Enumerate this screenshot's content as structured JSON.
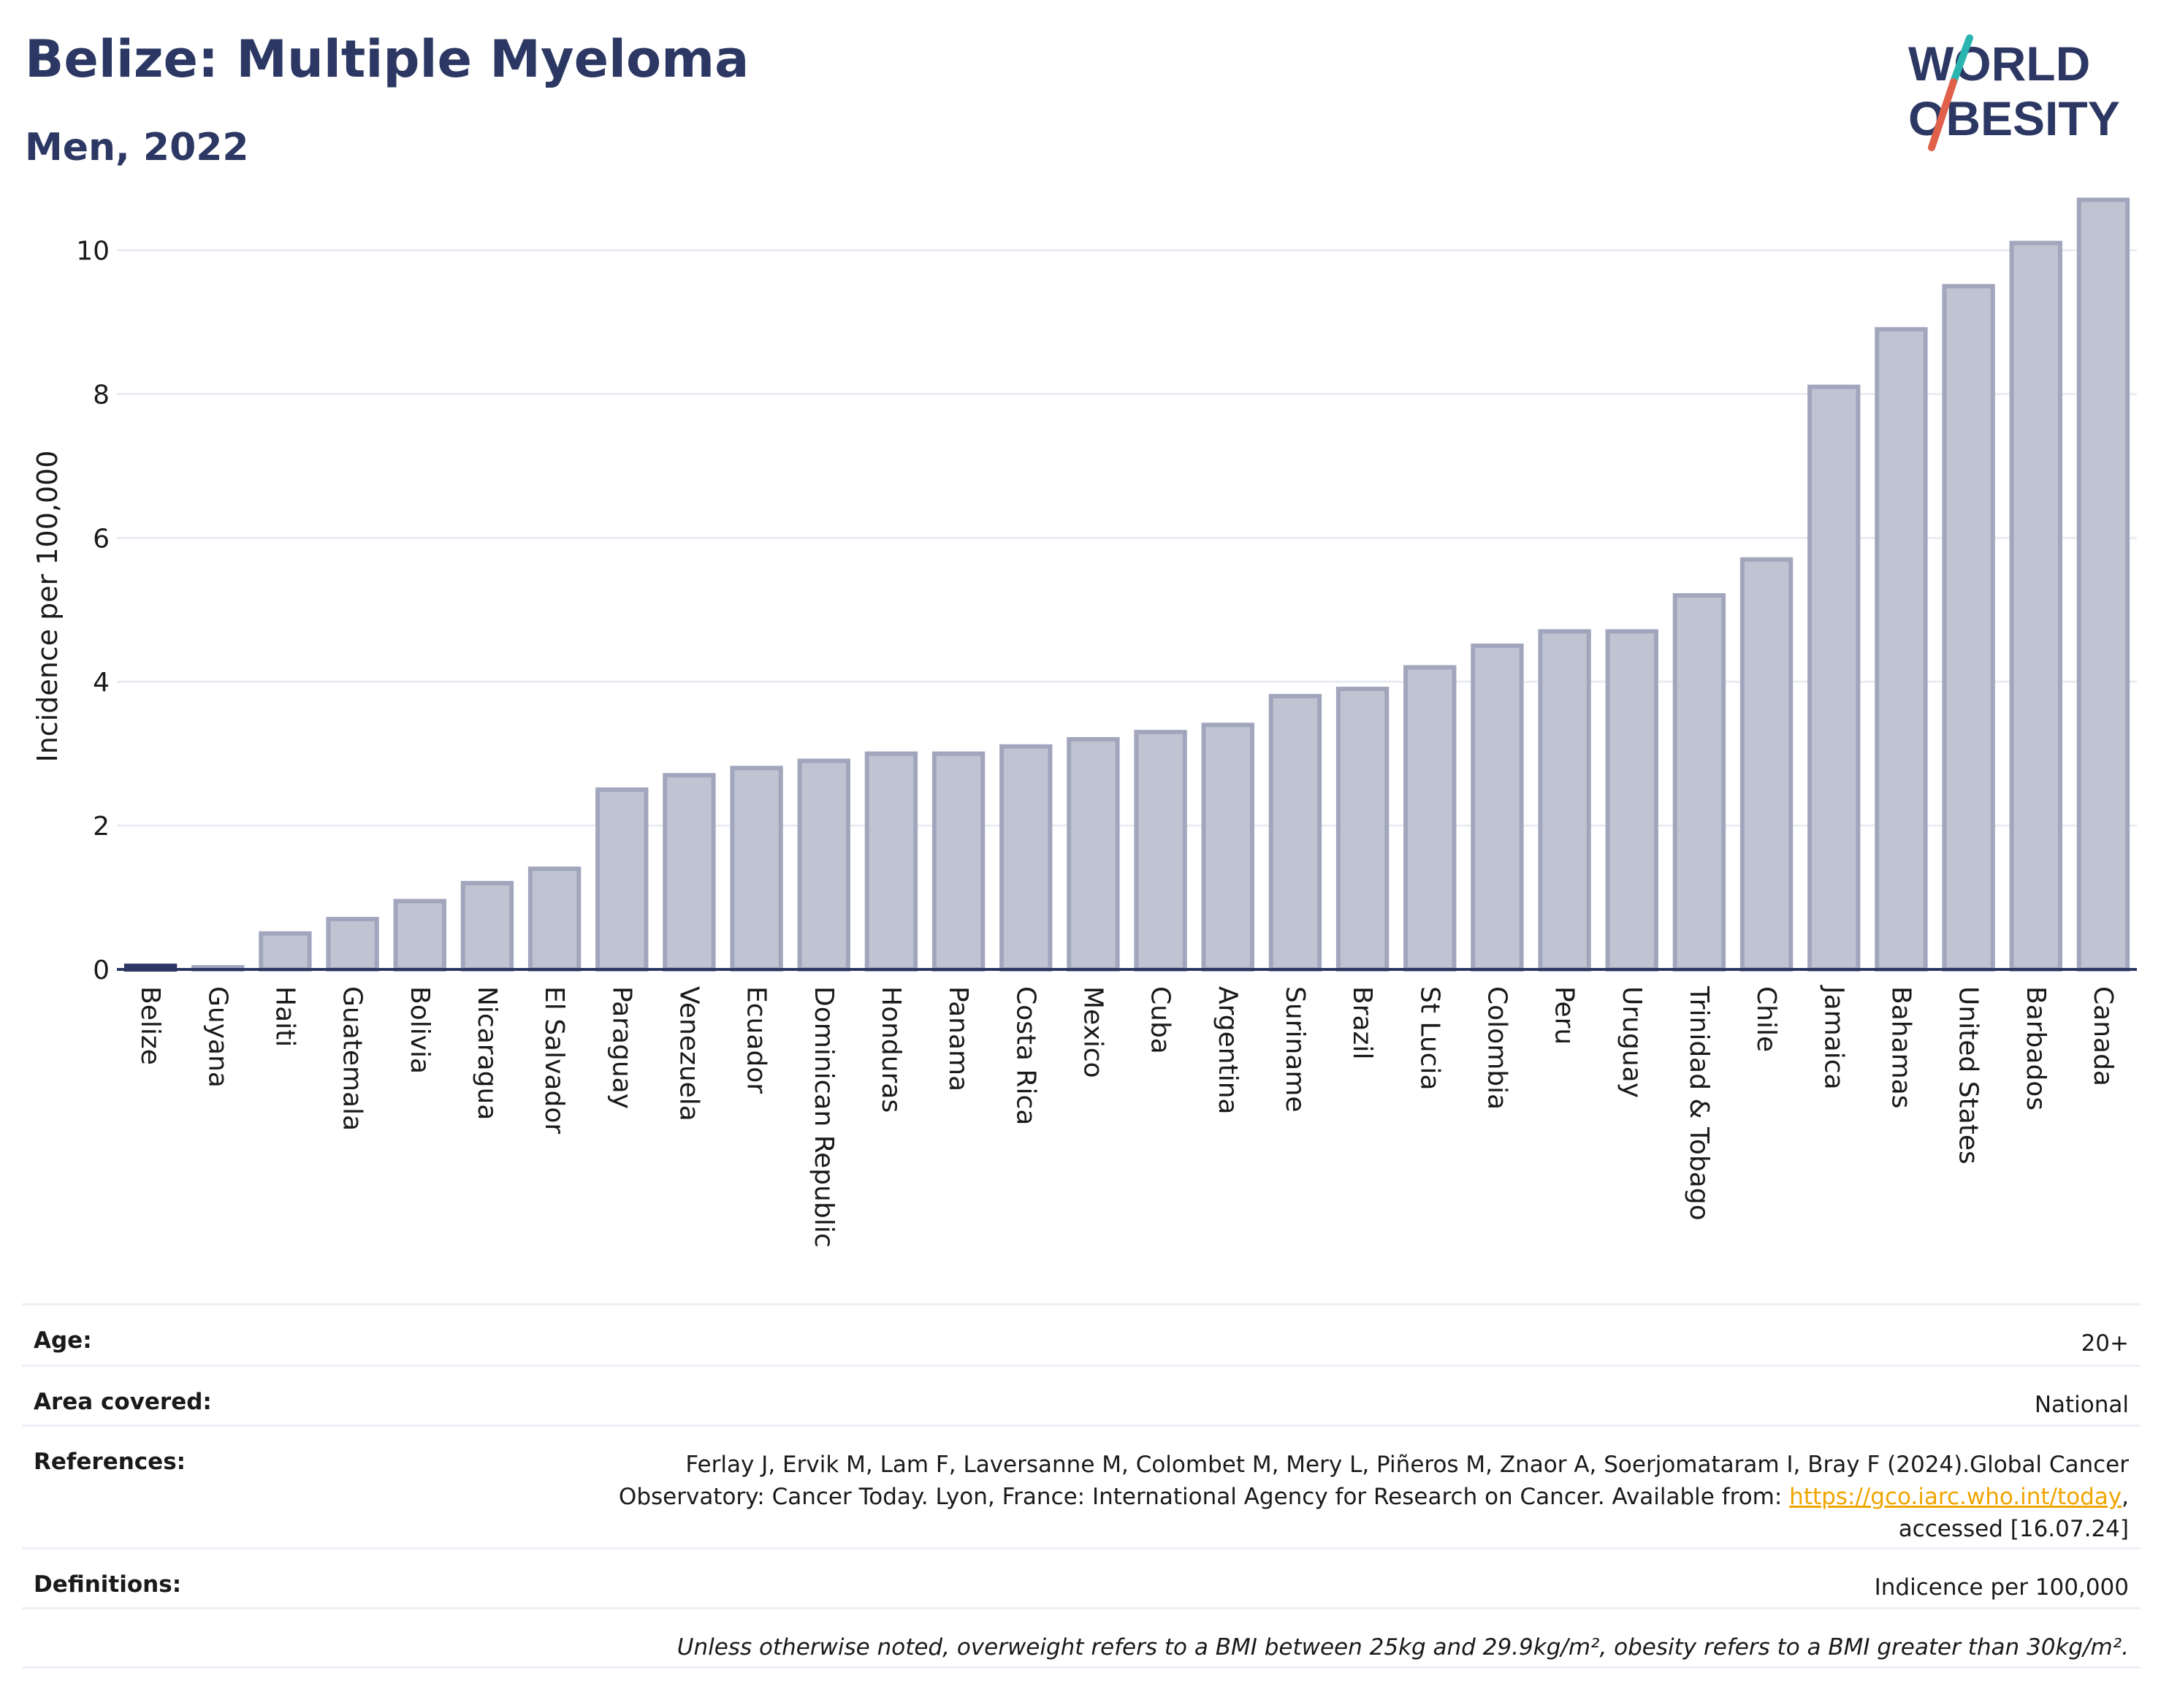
{
  "header": {
    "title": "Belize: Multiple Myeloma",
    "subtitle": "Men, 2022"
  },
  "logo": {
    "line1": "WORLD",
    "line2": "OBESITY",
    "colors": {
      "text": "#2c3863",
      "slash_teal": "#2bb5b0",
      "slash_red": "#e0604a"
    }
  },
  "chart_data": {
    "type": "bar",
    "ylabel": "Incidence per 100,000",
    "xlabel": "",
    "ylim": [
      0,
      11
    ],
    "yticks": [
      0,
      2,
      4,
      6,
      8,
      10
    ],
    "grid": true,
    "categories": [
      "Belize",
      "Guyana",
      "Haiti",
      "Guatemala",
      "Bolivia",
      "Nicaragua",
      "El Salvador",
      "Paraguay",
      "Venezuela",
      "Ecuador",
      "Dominican Republic",
      "Honduras",
      "Panama",
      "Costa Rica",
      "Mexico",
      "Cuba",
      "Argentina",
      "Suriname",
      "Brazil",
      "St Lucia",
      "Colombia",
      "Peru",
      "Uruguay",
      "Trinidad & Tobago",
      "Chile",
      "Jamaica",
      "Bahamas",
      "United States",
      "Barbados",
      "Canada"
    ],
    "values": [
      0.05,
      0.03,
      0.5,
      0.7,
      0.95,
      1.2,
      1.4,
      2.5,
      2.7,
      2.8,
      2.9,
      3.0,
      3.0,
      3.1,
      3.2,
      3.3,
      3.4,
      3.8,
      3.9,
      4.2,
      4.5,
      4.7,
      4.7,
      5.2,
      5.7,
      8.1,
      8.9,
      9.5,
      10.1,
      10.7
    ],
    "highlight": "Belize",
    "colors": {
      "bar_fill": "#c0c3d1",
      "bar_stroke": "#a1a6bd",
      "highlight": "#2c3863",
      "grid": "#eaecf2",
      "axis": "#2c3863"
    }
  },
  "meta": {
    "age_label": "Age:",
    "age_value": "20+",
    "area_label": "Area covered:",
    "area_value": "National",
    "references_label": "References:",
    "references_line1": "Ferlay J, Ervik M, Lam F, Laversanne M, Colombet M, Mery L, Piñeros M, Znaor A, Soerjomataram I, Bray F (2024).Global Cancer",
    "references_line2_pre": "Observatory: Cancer Today. Lyon, France: International Agency for Research on Cancer. Available from: ",
    "references_link": "https://gco.iarc.who.int/today",
    "references_line2_post": ",",
    "references_line3": "accessed [16.07.24]",
    "definitions_label": "Definitions:",
    "definitions_value": "Indicence per 100,000",
    "note": "Unless otherwise noted, overweight refers to a BMI between 25kg and 29.9kg/m², obesity refers to a BMI greater than 30kg/m²."
  }
}
